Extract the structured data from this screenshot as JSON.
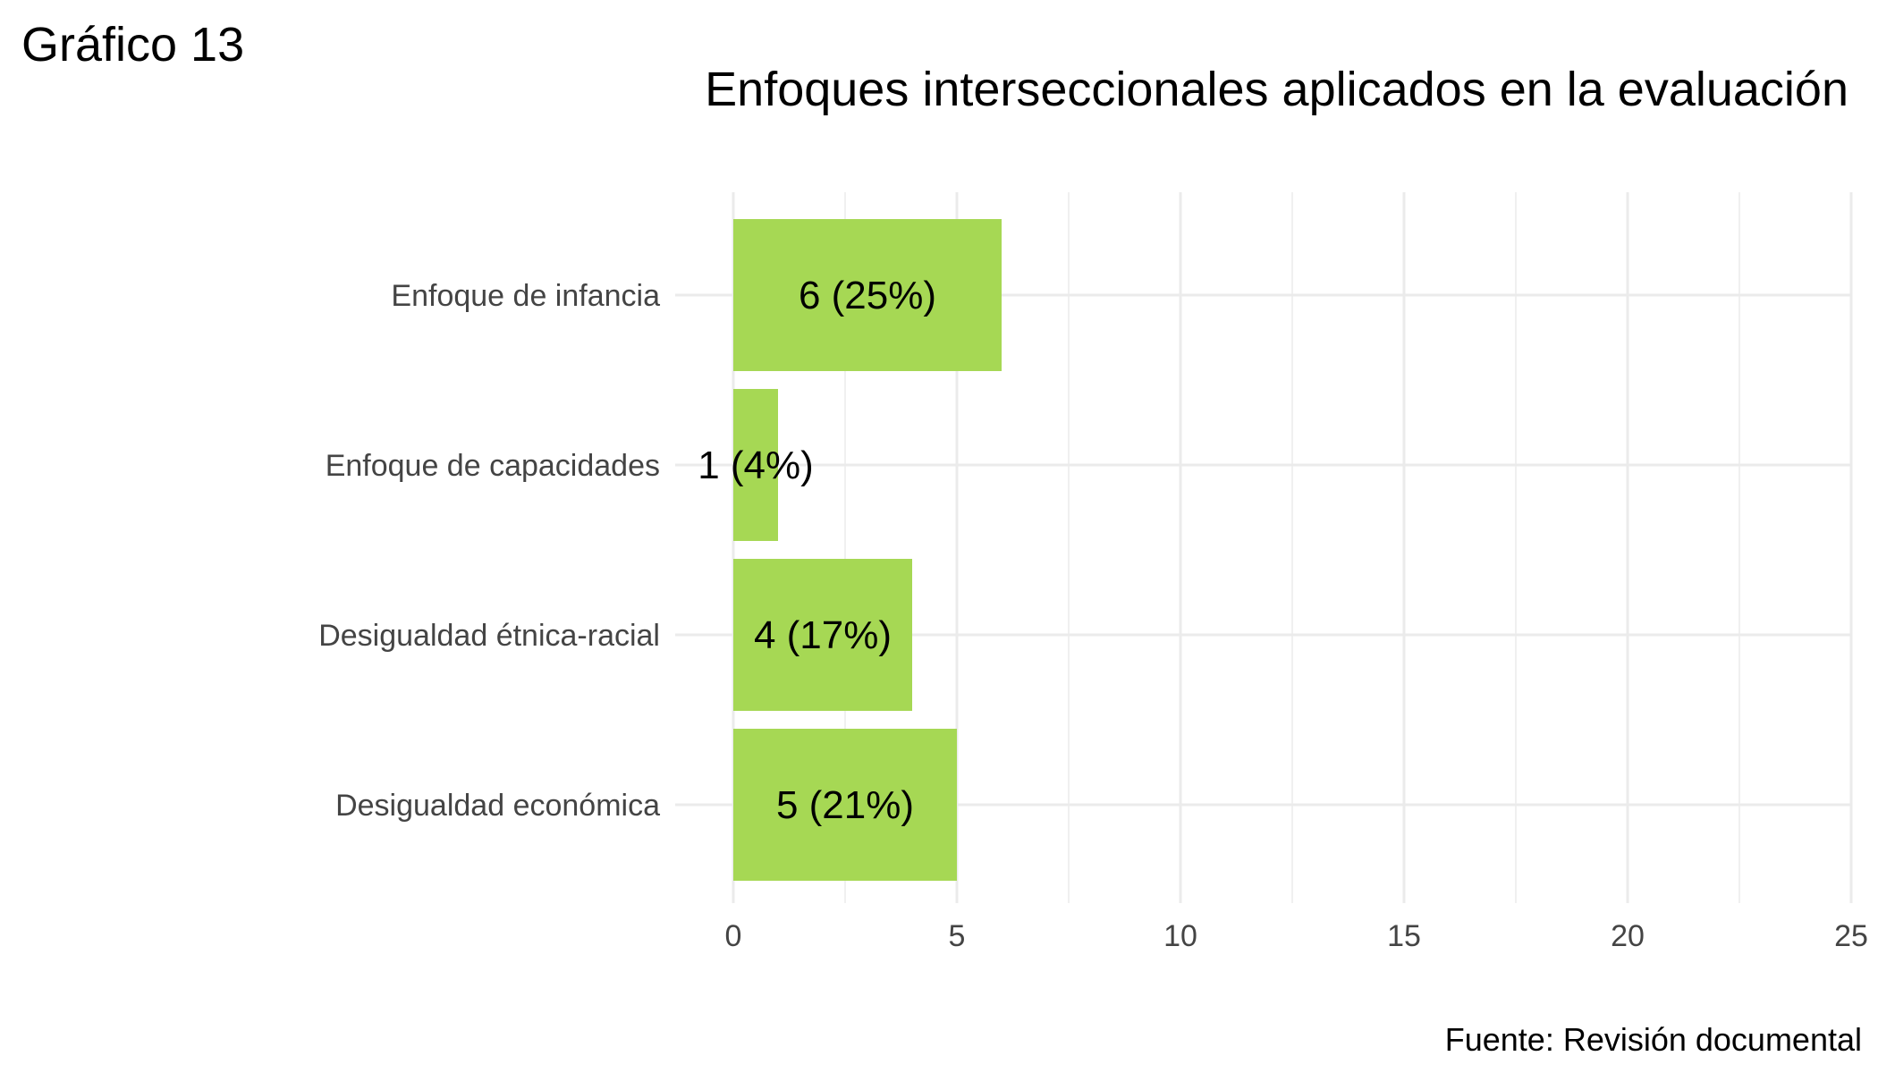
{
  "figure_label": "Gráfico 13",
  "caption": "Fuente: Revisión documental",
  "colors": {
    "bar": "#a6d854",
    "grid": "#ebebeb",
    "axis_text": "#444444"
  },
  "chart_data": {
    "type": "bar",
    "orientation": "horizontal",
    "title": "Enfoques interseccionales aplicados en la evaluación",
    "xlabel": "",
    "ylabel": "",
    "categories": [
      "Enfoque de infancia",
      "Enfoque de capacidades",
      "Desigualdad étnica-racial",
      "Desigualdad económica"
    ],
    "values": [
      6,
      1,
      4,
      5
    ],
    "data_labels": [
      "6 (25%)",
      "1 (4%)",
      "4 (17%)",
      "5 (21%)"
    ],
    "xlim": [
      0,
      25
    ],
    "xticks": [
      0,
      5,
      10,
      15,
      20,
      25
    ],
    "xtick_labels": [
      "0",
      "5",
      "10",
      "15",
      "20",
      "25"
    ],
    "grid": true,
    "legend": "none"
  }
}
